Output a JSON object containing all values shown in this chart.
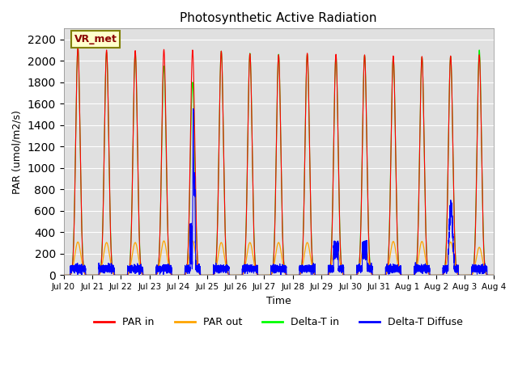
{
  "title": "Photosynthetic Active Radiation",
  "ylabel": "PAR (umol/m2/s)",
  "xlabel": "Time",
  "ylim": [
    0,
    2300
  ],
  "yticks": [
    0,
    200,
    400,
    600,
    800,
    1000,
    1200,
    1400,
    1600,
    1800,
    2000,
    2200
  ],
  "legend_labels": [
    "PAR in",
    "PAR out",
    "Delta-T in",
    "Delta-T Diffuse"
  ],
  "legend_colors": [
    "red",
    "orange",
    "lime",
    "blue"
  ],
  "annotation_text": "VR_met",
  "bg_color": "#e0e0e0",
  "par_in_peaks": [
    2130,
    2100,
    2095,
    2105,
    2100,
    2090,
    2065,
    2055,
    2070,
    2060,
    2055,
    2045,
    2040,
    2045,
    2055
  ],
  "par_out_peaks": [
    310,
    305,
    305,
    320,
    320,
    305,
    305,
    305,
    305,
    305,
    310,
    315,
    315,
    310,
    260
  ],
  "delta_t_in_peaks": [
    2120,
    2080,
    2075,
    1950,
    1800,
    2090,
    2070,
    2060,
    2060,
    2050,
    2050,
    2035,
    2035,
    2040,
    2100
  ],
  "delta_t_diffuse_base": 60,
  "special_days_diffuse": {
    "4": 1200,
    "13": 650
  },
  "n_days": 15,
  "day_labels": [
    "Jul 20",
    "Jul 21",
    "Jul 22",
    "Jul 23",
    "Jul 24",
    "Jul 25",
    "Jul 26",
    "Jul 27",
    "Jul 28",
    "Jul 29",
    "Jul 30",
    "Jul 31",
    "Aug 1",
    "Aug 2",
    "Aug 3",
    "Aug 4"
  ],
  "colors": {
    "PAR_in": "red",
    "PAR_out": "orange",
    "Delta_T_in": "#00ee00",
    "Delta_T_Diffuse": "blue"
  }
}
